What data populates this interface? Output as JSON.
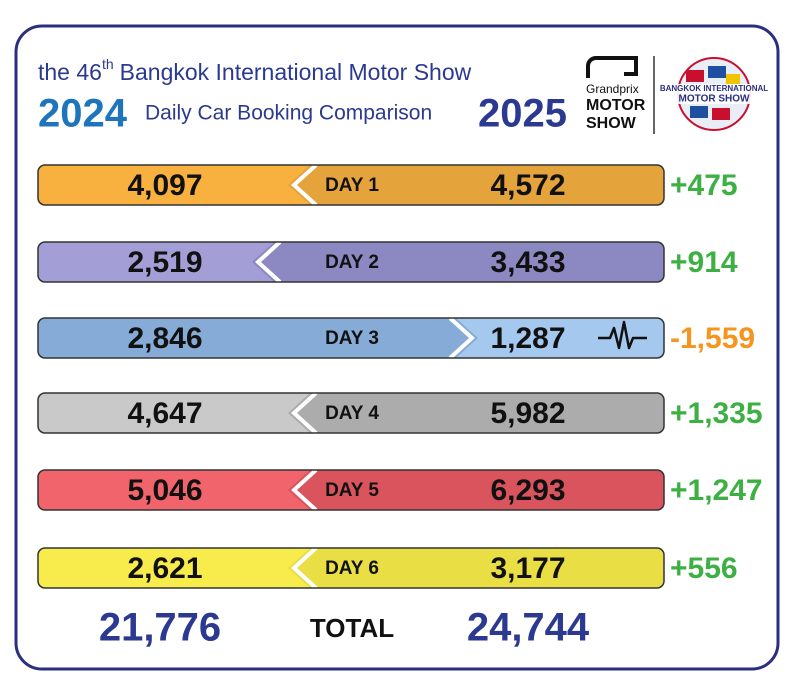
{
  "header": {
    "title_prefix": "the 46",
    "title_sup": "th",
    "title_rest": "Bangkok International Motor Show",
    "subtitle": "Daily Car Booking Comparison",
    "year_left": "2024",
    "year_right": "2025",
    "logo_left": [
      "Grandprix",
      "MOTOR",
      "SHOW"
    ],
    "logo_right": [
      "BANGKOK INTERNATIONAL",
      "MOTOR SHOW"
    ]
  },
  "rows": [
    {
      "day": "DAY 1",
      "left": "4,097",
      "right": "4,572",
      "change": "+475",
      "left_color": "#f8b13f",
      "right_color": "#e4a33b",
      "change_color": "#3cb043",
      "chevron": "left"
    },
    {
      "day": "DAY 2",
      "left": "2,519",
      "right": "3,433",
      "change": "+914",
      "left_color": "#a39ed6",
      "right_color": "#8b88c2",
      "change_color": "#3cb043",
      "chevron": "left"
    },
    {
      "day": "DAY 3",
      "left": "2,846",
      "right": "1,287",
      "change": "-1,559",
      "left_color": "#85abd6",
      "right_color": "#a5c8ee",
      "change_color": "#f7941d",
      "chevron": "right"
    },
    {
      "day": "DAY 4",
      "left": "4,647",
      "right": "5,982",
      "change": "+1,335",
      "left_color": "#c9c9c9",
      "right_color": "#acacac",
      "change_color": "#3cb043",
      "chevron": "left"
    },
    {
      "day": "DAY 5",
      "left": "5,046",
      "right": "6,293",
      "change": "+1,247",
      "left_color": "#f1646c",
      "right_color": "#d9545d",
      "change_color": "#3cb043",
      "chevron": "left"
    },
    {
      "day": "DAY 6",
      "left": "2,621",
      "right": "3,177",
      "change": "+556",
      "left_color": "#f7ec4b",
      "right_color": "#e9df45",
      "change_color": "#3cb043",
      "chevron": "left"
    }
  ],
  "totals": {
    "left": "21,776",
    "label": "TOTAL",
    "right": "24,744"
  }
}
